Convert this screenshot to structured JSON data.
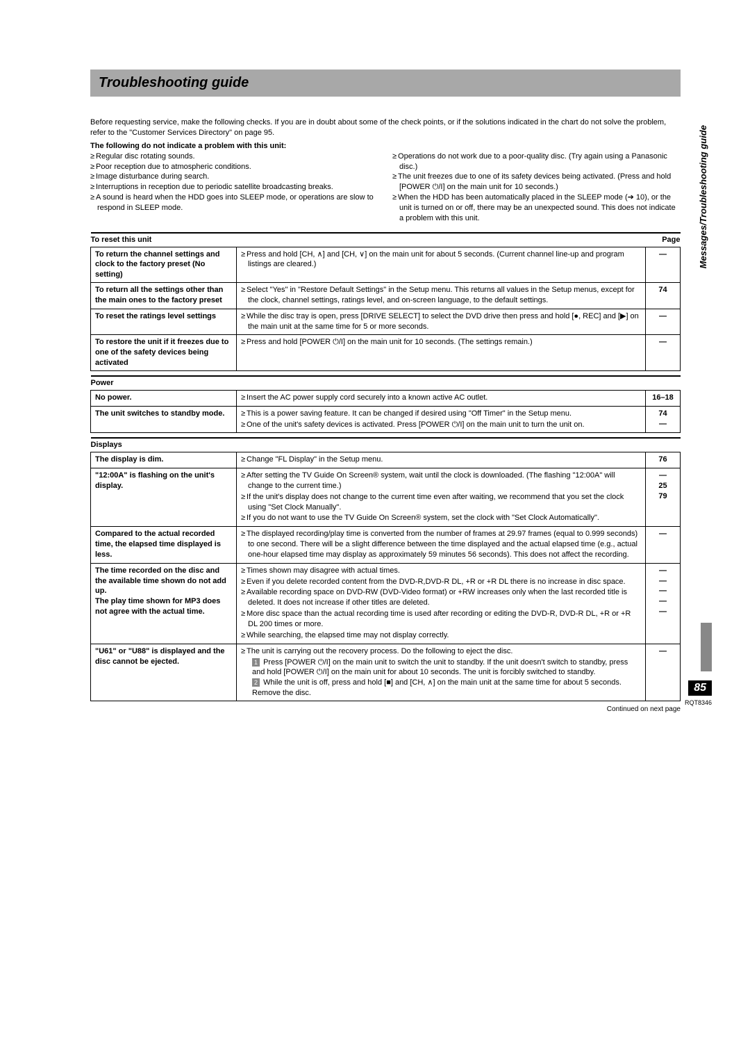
{
  "title": "Troubleshooting guide",
  "intro": "Before requesting service, make the following checks. If you are in doubt about some of the check points, or if the solutions indicated in the chart do not solve the problem, refer to the \"Customer Services Directory\" on page 95.",
  "sub_heading": "The following do not indicate a problem with this unit:",
  "left_bullets": [
    "Regular disc rotating sounds.",
    "Poor reception due to atmospheric conditions.",
    "Image disturbance during search.",
    "Interruptions in reception due to periodic satellite broadcasting breaks.",
    "A sound is heard when the HDD goes into SLEEP mode, or operations are slow to respond in SLEEP mode."
  ],
  "right_bullets": [
    "Operations do not work due to a poor-quality disc. (Try again using a Panasonic disc.)",
    "The unit freezes due to one of its safety devices being activated. (Press and hold [POWER ⏻/I] on the main unit for 10 seconds.)",
    "When the HDD has been automatically placed in the SLEEP mode (➔ 10), or the unit is turned on or off, there may be an unexpected sound. This does not indicate a problem with this unit."
  ],
  "sections": [
    {
      "header_left": "To reset this unit",
      "header_right": "Page",
      "rows": [
        {
          "symptom": "To return the channel settings and clock to the factory preset (No setting)",
          "remedies": [
            "Press and hold [CH, ∧] and [CH, ∨] on the main unit for about 5 seconds. (Current channel line-up and program listings are cleared.)"
          ],
          "pages": [
            "—"
          ]
        },
        {
          "symptom": "To return all the settings other than the main ones to the factory preset",
          "remedies": [
            "Select \"Yes\" in \"Restore Default Settings\" in the Setup menu. This returns all values in the Setup menus, except for the clock, channel settings, ratings level, and on-screen language, to the default settings."
          ],
          "pages": [
            "74"
          ]
        },
        {
          "symptom": "To reset the ratings level settings",
          "remedies": [
            "While the disc tray is open, press [DRIVE SELECT] to select the DVD drive then press and hold [●, REC] and [▶] on the main unit at the same time for 5 or more seconds."
          ],
          "pages": [
            "—"
          ]
        },
        {
          "symptom": "To restore the unit if it freezes due to one of the safety devices being activated",
          "remedies": [
            "Press and hold [POWER ⏻/I] on the main unit for 10 seconds. (The settings remain.)"
          ],
          "pages": [
            "—"
          ]
        }
      ]
    },
    {
      "header_left": "Power",
      "header_right": "",
      "rows": [
        {
          "symptom": "No power.",
          "remedies": [
            "Insert the AC power supply cord securely into a known active AC outlet."
          ],
          "pages": [
            "16–18"
          ]
        },
        {
          "symptom": "The unit switches to standby mode.",
          "remedies": [
            "This is a power saving feature. It can be changed if desired using \"Off Timer\" in the Setup menu.",
            "One of the unit's safety devices is activated. Press [POWER ⏻/I] on the main unit to turn the unit on."
          ],
          "pages": [
            "74",
            "—"
          ]
        }
      ]
    },
    {
      "header_left": "Displays",
      "header_right": "",
      "rows": [
        {
          "symptom": "The display is dim.",
          "remedies": [
            "Change \"FL Display\" in the Setup menu."
          ],
          "pages": [
            "76"
          ]
        },
        {
          "symptom": "\"12:00A\" is flashing on the unit's display.",
          "remedies": [
            "After setting the TV Guide On Screen® system, wait until the clock is downloaded. (The flashing \"12:00A\" will change to the current time.)",
            "If the unit's display does not change to the current time even after waiting, we recommend that you set the clock using \"Set Clock Manually\".",
            "If you do not want to use the TV Guide On Screen® system, set the clock with \"Set Clock Automatically\"."
          ],
          "pages": [
            "—",
            "25",
            "79"
          ]
        },
        {
          "symptom": "Compared to the actual recorded time, the elapsed time displayed is less.",
          "remedies": [
            "The displayed recording/play time is converted from the number of frames at 29.97 frames (equal to 0.999 seconds) to one second. There will be a slight difference between the time displayed and the actual elapsed time (e.g., actual one-hour elapsed time may display as approximately 59 minutes 56 seconds). This does not affect the recording."
          ],
          "pages": [
            "—"
          ]
        },
        {
          "symptom": "The time recorded on the disc and the available time shown do not add up.\nThe play time shown for MP3 does not agree with the actual time.",
          "remedies": [
            "Times shown may disagree with actual times.",
            "Even if you delete recorded content from the DVD-R,DVD-R DL, +R or +R DL there is no increase in disc space.",
            "Available recording space on DVD-RW (DVD-Video format) or +RW increases only when the last recorded title is deleted. It does not increase if other titles are deleted.",
            "More disc space than the actual recording time is used after recording or editing the DVD-R, DVD-R DL, +R or +R DL 200 times or more.",
            "While searching, the elapsed time may not display correctly."
          ],
          "pages": [
            "—",
            "—",
            "—",
            "—",
            "—"
          ]
        },
        {
          "symptom": "\"U61\" or \"U88\" is displayed and the disc cannot be ejected.",
          "remedies_special": {
            "intro": "The unit is carrying out the recovery process. Do the following to eject the disc.",
            "steps": [
              "Press [POWER ⏻/I] on the main unit to switch the unit to standby. If the unit doesn't switch to standby, press and hold [POWER ⏻/I] on the main unit for about 10 seconds. The unit is forcibly switched to standby.",
              "While the unit is off, press and hold [■] and [CH, ∧] on the main unit at the same time for about 5 seconds. Remove the disc."
            ]
          },
          "pages": [
            "—"
          ]
        }
      ]
    }
  ],
  "continued": "Continued on next page",
  "side_label": "Messages/Troubleshooting guide",
  "page_num": "85",
  "doc_id": "RQT8346"
}
